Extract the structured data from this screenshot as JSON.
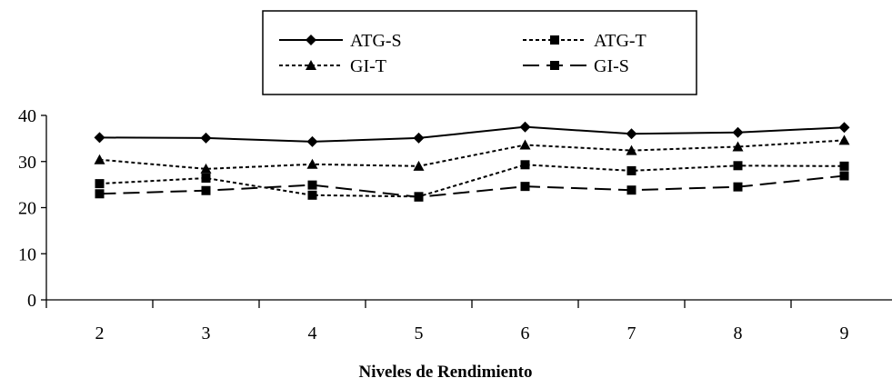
{
  "chart_data": {
    "type": "line",
    "title": "",
    "xlabel": "Niveles de Rendimiento",
    "ylabel": "",
    "categories": [
      "2",
      "3",
      "4",
      "5",
      "6",
      "7",
      "8",
      "9"
    ],
    "ylim": [
      0,
      40
    ],
    "yticks": [
      "0",
      "10",
      "20",
      "30",
      "40"
    ],
    "grid": false,
    "legend_position": "top-center",
    "series": [
      {
        "name": "ATG-S",
        "marker": "diamond",
        "line": "solid",
        "values": [
          35.2,
          35.1,
          34.3,
          35.1,
          37.5,
          36.0,
          36.3,
          37.4
        ]
      },
      {
        "name": "ATG-T",
        "marker": "square",
        "line": "dotted",
        "values": [
          25.2,
          26.4,
          22.7,
          22.4,
          29.3,
          28.0,
          29.1,
          29.0
        ]
      },
      {
        "name": "GI-T",
        "marker": "triangle",
        "line": "dotted",
        "values": [
          30.4,
          28.4,
          29.4,
          29.0,
          33.6,
          32.4,
          33.2,
          34.6
        ]
      },
      {
        "name": "GI-S",
        "marker": "square",
        "line": "dashed",
        "values": [
          23.0,
          23.7,
          24.9,
          22.3,
          24.6,
          23.8,
          24.5,
          26.9
        ]
      }
    ]
  }
}
